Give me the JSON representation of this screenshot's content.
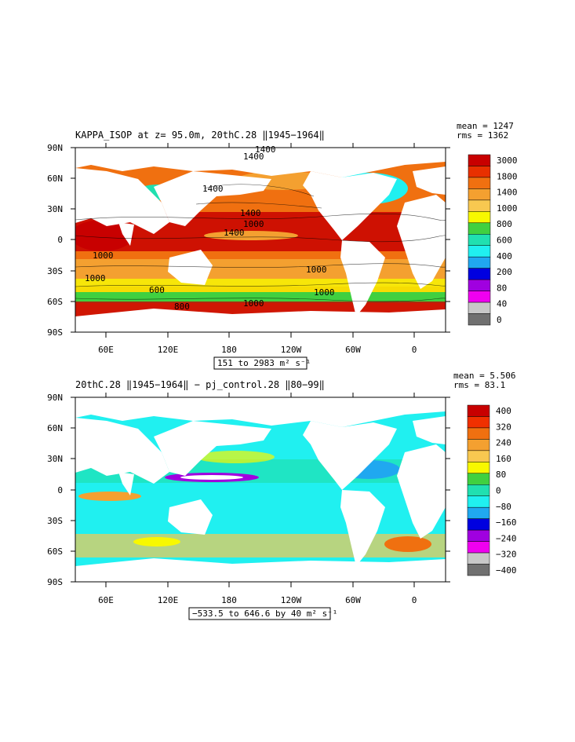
{
  "top_panel": {
    "title": "KAPPA_ISOP at z=  95.0m, 20thC.28 ‖1945−1964‖",
    "stats": {
      "mean": "mean = 1247",
      "rms": "rms = 1362"
    },
    "range_label": "151 to 2983 m² s⁻¹",
    "lat_labels": [
      "90N",
      "60N",
      "30N",
      "0",
      "30S",
      "60S",
      "90S"
    ],
    "lon_labels": [
      "60E",
      "120E",
      "180",
      "120W",
      "60W",
      "0"
    ],
    "colorbar_labels": [
      "3000",
      "1800",
      "1400",
      "1000",
      "800",
      "600",
      "400",
      "200",
      "80",
      "40",
      "0"
    ],
    "colorbar_colors": [
      "#c80000",
      "#e83000",
      "#f07010",
      "#f4a030",
      "#f8c850",
      "#f8f800",
      "#40d040",
      "#20e0b0",
      "#20f0f0",
      "#20a8f0",
      "#0000e0",
      "#a000e0",
      "#f000f0",
      "#c8c8c8",
      "#707070"
    ],
    "contour_labels": [
      "1400",
      "1400",
      "1400",
      "1400",
      "1000",
      "1400",
      "1000",
      "1000",
      "1000",
      "1000",
      "1000",
      "600",
      "800"
    ]
  },
  "bottom_panel": {
    "title": "20thC.28 ‖1945−1964‖ − pj_control.28 ‖80−99‖",
    "stats": {
      "mean": "mean = 5.506",
      "rms": "rms = 83.1"
    },
    "range_label": "−533.5 to 646.6 by 40 m² s⁻¹",
    "lat_labels": [
      "90N",
      "60N",
      "30N",
      "0",
      "30S",
      "60S",
      "90S"
    ],
    "lon_labels": [
      "60E",
      "120E",
      "180",
      "120W",
      "60W",
      "0"
    ],
    "colorbar_labels": [
      "400",
      "320",
      "240",
      "160",
      "80",
      "0",
      "−80",
      "−160",
      "−240",
      "−320",
      "−400"
    ],
    "colorbar_colors": [
      "#c80000",
      "#f03000",
      "#f07010",
      "#f4a030",
      "#f8c850",
      "#f8f800",
      "#40d040",
      "#20e0b0",
      "#20f0f0",
      "#20a8f0",
      "#0000e0",
      "#a000e0",
      "#f000f0",
      "#c8c8c8",
      "#707070"
    ]
  }
}
